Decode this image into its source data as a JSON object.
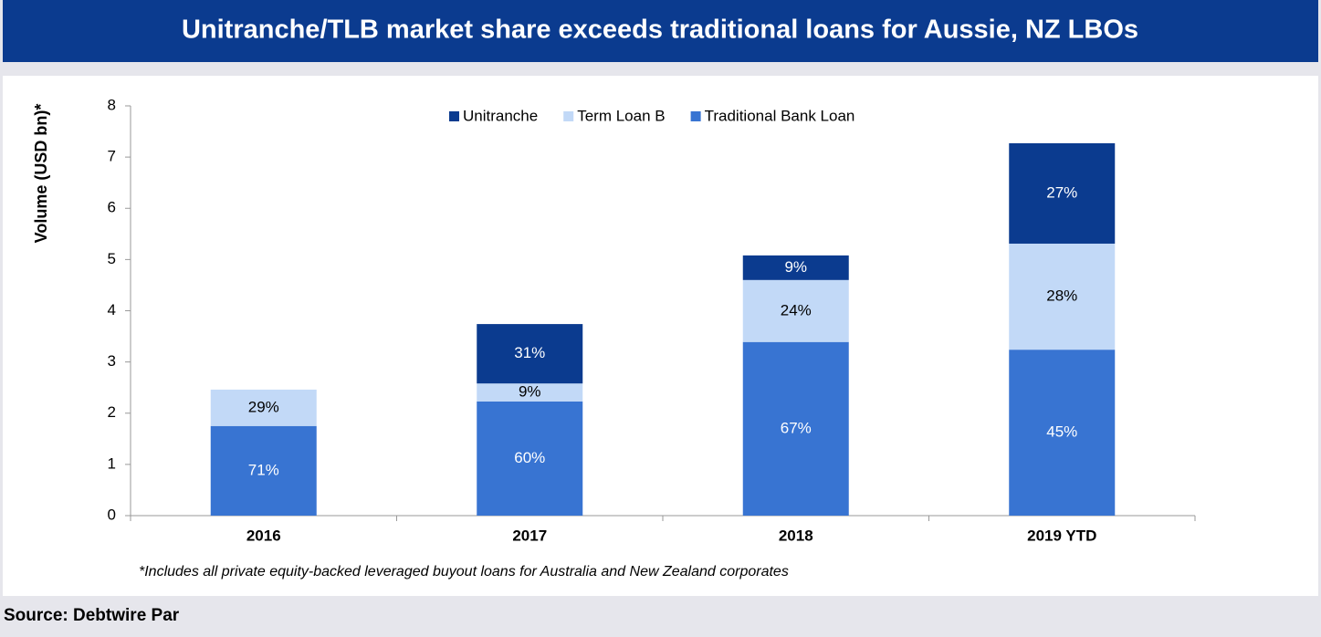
{
  "chart_data": {
    "type": "bar",
    "stacked": true,
    "title": "Unitranche/TLB market share exceeds traditional loans for Aussie, NZ LBOs",
    "y_label": "Volume (USD bn)*",
    "footnote": "*Includes all private equity-backed leveraged buyout loans for Australia and New Zealand corporates",
    "source": "Source: Debtwire Par",
    "categories": [
      "2016",
      "2017",
      "2018",
      "2019 YTD"
    ],
    "series": [
      {
        "name": "Unitranche",
        "color": "#0b3b8f",
        "values": [
          null,
          1.16,
          0.48,
          1.96
        ],
        "labels": [
          null,
          "31%",
          "9%",
          "27%"
        ]
      },
      {
        "name": "Term Loan B",
        "color": "#c2d9f7",
        "values": [
          0.71,
          0.35,
          1.21,
          2.07
        ],
        "labels": [
          "29%",
          "9%",
          "24%",
          "28%"
        ]
      },
      {
        "name": "Traditional Bank Loan",
        "color": "#3874d2",
        "values": [
          1.75,
          2.23,
          3.39,
          3.24
        ],
        "labels": [
          "71%",
          "60%",
          "67%",
          "45%"
        ]
      }
    ],
    "ylim": [
      0,
      8
    ],
    "yticks": [
      0,
      1,
      2,
      3,
      4,
      5,
      6,
      7,
      8
    ],
    "grid": false
  }
}
